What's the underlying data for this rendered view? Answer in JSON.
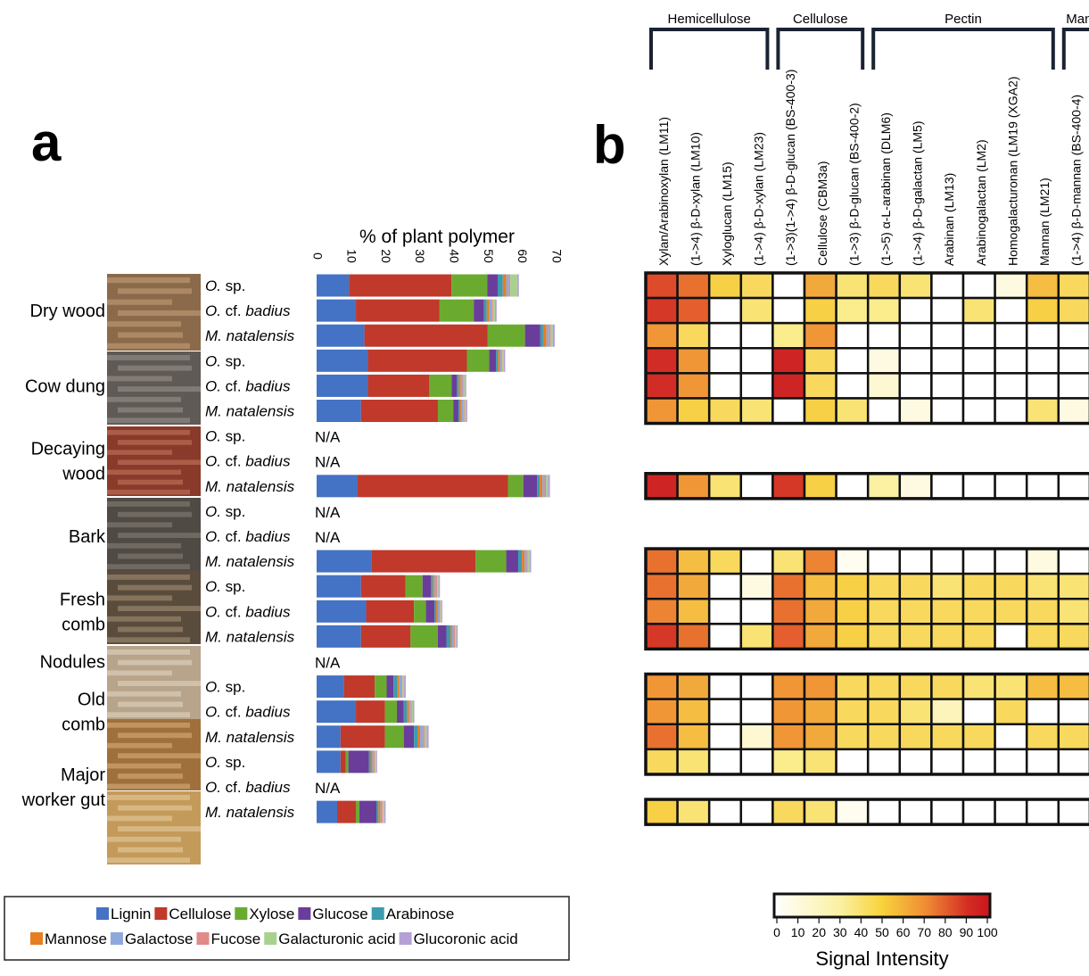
{
  "panel_labels": {
    "a": "a",
    "b": "b"
  },
  "colors": {
    "Lignin": "#4472c4",
    "Cellulose": "#c0392b",
    "Xylose": "#6aab2f",
    "Glucose": "#6a3d9a",
    "Arabinose": "#3b9bb0",
    "Mannose": "#e67e22",
    "Galactose": "#8fa8dc",
    "Fucose": "#e08a8a",
    "Galacturonic acid": "#a9d18e",
    "Glucoronic acid": "#b4a0d6"
  },
  "groups": [
    {
      "label": [
        "Dry wood"
      ],
      "rows": [
        0,
        1,
        2
      ]
    },
    {
      "label": [
        "Cow dung"
      ],
      "rows": [
        3,
        4,
        5
      ]
    },
    {
      "label": [
        "Decaying",
        "wood"
      ],
      "rows": [
        6,
        7,
        8
      ]
    },
    {
      "label": [
        "Bark"
      ],
      "rows": [
        9,
        10,
        11
      ]
    },
    {
      "label": [
        "Fresh",
        "comb"
      ],
      "rows": [
        12,
        13,
        14
      ]
    },
    {
      "label": [
        "Nodules"
      ],
      "rows": [
        15
      ]
    },
    {
      "label": [
        "Old",
        "comb"
      ],
      "rows": [
        16,
        17,
        18
      ]
    },
    {
      "label": [
        "Major",
        "worker gut"
      ],
      "rows": [
        19,
        20,
        21
      ]
    }
  ],
  "chart_data": [
    {
      "type": "bar",
      "orientation": "horizontal",
      "stacked": true,
      "title": "% of plant polymer",
      "xlim": [
        0,
        70
      ],
      "xticks": [
        0,
        10,
        20,
        30,
        40,
        50,
        60,
        70
      ],
      "na_label": "N/A",
      "categories": [
        "O. sp.",
        "O. cf. badius",
        "M. natalensis",
        "O. sp.",
        "O. cf. badius",
        "M. natalensis",
        "O. sp.",
        "O. cf. badius",
        "M. natalensis",
        "O. sp.",
        "O. cf. badius",
        "M. natalensis",
        "O. sp.",
        "O. cf. badius",
        "M. natalensis",
        "",
        "O. sp.",
        "O. cf. badius",
        "M. natalensis",
        "O. sp.",
        "O. cf. badius",
        "M. natalensis"
      ],
      "legend": [
        "Lignin",
        "Cellulose",
        "Xylose",
        "Glucose",
        "Arabinose",
        "Mannose",
        "Galactose",
        "Fucose",
        "Galacturonic acid",
        "Glucoronic acid"
      ],
      "legend_position": "bottom",
      "series": [
        {
          "name": "Lignin",
          "values": [
            9.5,
            11.5,
            14,
            15,
            15,
            13,
            null,
            null,
            12,
            null,
            null,
            16,
            13,
            14.5,
            13,
            null,
            8,
            11.5,
            7,
            7,
            null,
            6
          ]
        },
        {
          "name": "Cellulose",
          "values": [
            30,
            24.5,
            36,
            29,
            18,
            22.5,
            null,
            null,
            44,
            null,
            null,
            30.5,
            13,
            14,
            14.5,
            null,
            9,
            8.5,
            13,
            1.5,
            null,
            5.5
          ]
        },
        {
          "name": "Xylose",
          "values": [
            10.5,
            10,
            11,
            6.5,
            6.5,
            4.5,
            null,
            null,
            4.5,
            null,
            null,
            9,
            5,
            3.5,
            8,
            null,
            3.5,
            3.5,
            5.5,
            0.8,
            null,
            1
          ]
        },
        {
          "name": "Glucose",
          "values": [
            3,
            3,
            4.5,
            2,
            1.5,
            1.5,
            null,
            null,
            4,
            null,
            null,
            3.5,
            2.5,
            2.5,
            2.5,
            null,
            2,
            2,
            3,
            6,
            null,
            5
          ]
        },
        {
          "name": "Arabinose",
          "values": [
            1.5,
            0.8,
            0.8,
            0.6,
            0.6,
            0.5,
            null,
            null,
            0.8,
            null,
            null,
            1.1,
            0.5,
            0.5,
            1.2,
            null,
            1.1,
            0.9,
            1,
            0.5,
            null,
            0.6
          ]
        },
        {
          "name": "Mannose",
          "values": [
            1,
            0.8,
            1,
            0.6,
            0.6,
            0.5,
            null,
            null,
            0.8,
            null,
            null,
            0.8,
            0.5,
            0.5,
            0.5,
            null,
            0.6,
            0.6,
            0.8,
            0.5,
            null,
            0.6
          ]
        },
        {
          "name": "Galactose",
          "values": [
            0.8,
            0.6,
            0.8,
            0.4,
            0.5,
            0.5,
            null,
            null,
            0.6,
            null,
            null,
            0.6,
            0.5,
            0.4,
            0.5,
            null,
            0.6,
            0.5,
            0.8,
            0.4,
            null,
            0.4
          ]
        },
        {
          "name": "Fucose",
          "values": [
            0.4,
            0.4,
            0.4,
            0.3,
            0.3,
            0.3,
            null,
            null,
            0.4,
            null,
            null,
            0.3,
            0.3,
            0.3,
            0.3,
            null,
            0.3,
            0.3,
            0.5,
            0.3,
            null,
            0.3
          ]
        },
        {
          "name": "Galacturonic acid",
          "values": [
            2,
            0.6,
            0.6,
            0.4,
            0.4,
            0.4,
            null,
            null,
            0.6,
            null,
            null,
            0.5,
            0.4,
            0.3,
            0.4,
            null,
            0.5,
            0.4,
            0.6,
            0.4,
            null,
            0.4
          ]
        },
        {
          "name": "Glucoronic acid",
          "values": [
            0.5,
            0.5,
            0.6,
            0.4,
            0.4,
            0.4,
            null,
            null,
            0.6,
            null,
            null,
            0.5,
            0.4,
            0.3,
            0.4,
            null,
            0.5,
            0.4,
            0.6,
            0.3,
            null,
            0.4
          ]
        }
      ]
    },
    {
      "type": "heatmap",
      "colorbar_label": "Signal Intensity",
      "colorbar_ticks": [
        0,
        10,
        20,
        30,
        40,
        50,
        60,
        70,
        80,
        90,
        100
      ],
      "column_groups": [
        {
          "label": "Hemicellulose",
          "columns": [
            0,
            3
          ]
        },
        {
          "label": "Cellulose",
          "columns": [
            4,
            6
          ]
        },
        {
          "label": "Pectin",
          "columns": [
            7,
            12
          ]
        },
        {
          "label": "Mannan",
          "columns": [
            13,
            14
          ]
        }
      ],
      "columns": [
        "Xylan/Arabinoxylan (LM11)",
        "(1->4) β-D-xylan (LM10)",
        "Xyloglucan (LM15)",
        "(1->4) β-D-xylan (LM23)",
        "(1->3)(1->4) β-D-glucan (BS-400-3)",
        "Cellulose (CBM3a)",
        "(1->3) β-D-glucan (BS-400-2)",
        "(1->5) α-L-arabinan (DLM6)",
        "(1->4) β-D-galactan (LM5)",
        "Arabinan (LM13)",
        "Arabinogalactan  (LM2)",
        "Homogalacturonan (LM19 (XGA2)",
        "Mannan (LM21)",
        "(1->4) β-D-mannan (BS-400-4)"
      ],
      "row_blocks": [
        [
          0,
          1,
          2,
          3,
          4,
          5
        ],
        [
          8
        ],
        [
          11,
          12,
          13,
          14
        ],
        [
          16,
          17,
          18,
          19
        ],
        [
          21
        ]
      ],
      "values": [
        [
          80,
          70,
          45,
          40,
          0,
          55,
          35,
          40,
          35,
          0,
          0,
          10,
          50,
          40
        ],
        [
          85,
          75,
          0,
          35,
          0,
          45,
          30,
          30,
          0,
          0,
          35,
          0,
          45,
          40
        ],
        [
          60,
          40,
          0,
          0,
          30,
          60,
          0,
          0,
          0,
          0,
          0,
          0,
          0,
          0
        ],
        [
          88,
          60,
          0,
          0,
          90,
          40,
          0,
          10,
          0,
          0,
          0,
          0,
          0,
          0
        ],
        [
          88,
          60,
          0,
          0,
          90,
          40,
          0,
          15,
          0,
          0,
          0,
          0,
          0,
          0
        ],
        [
          60,
          45,
          40,
          35,
          0,
          45,
          35,
          0,
          10,
          0,
          0,
          0,
          35,
          10
        ],
        [
          90,
          60,
          35,
          0,
          85,
          45,
          0,
          25,
          10,
          0,
          0,
          0,
          0,
          0
        ],
        [
          70,
          50,
          40,
          0,
          35,
          65,
          5,
          0,
          0,
          0,
          0,
          0,
          10,
          0
        ],
        [
          70,
          55,
          0,
          10,
          70,
          50,
          45,
          40,
          40,
          35,
          40,
          40,
          35,
          35
        ],
        [
          65,
          50,
          0,
          0,
          70,
          55,
          45,
          40,
          40,
          40,
          40,
          40,
          40,
          35
        ],
        [
          85,
          70,
          0,
          35,
          75,
          55,
          45,
          40,
          40,
          40,
          40,
          0,
          40,
          40
        ],
        [
          60,
          55,
          0,
          0,
          60,
          60,
          40,
          40,
          40,
          40,
          35,
          35,
          50,
          50
        ],
        [
          60,
          50,
          0,
          0,
          60,
          55,
          40,
          40,
          35,
          20,
          0,
          40,
          0,
          0
        ],
        [
          70,
          50,
          0,
          15,
          60,
          55,
          40,
          40,
          40,
          40,
          40,
          0,
          40,
          40
        ],
        [
          40,
          35,
          0,
          0,
          30,
          35,
          0,
          0,
          0,
          0,
          0,
          0,
          0,
          0
        ],
        [
          45,
          35,
          0,
          0,
          40,
          35,
          5,
          0,
          0,
          0,
          0,
          0,
          0,
          0
        ]
      ]
    }
  ]
}
